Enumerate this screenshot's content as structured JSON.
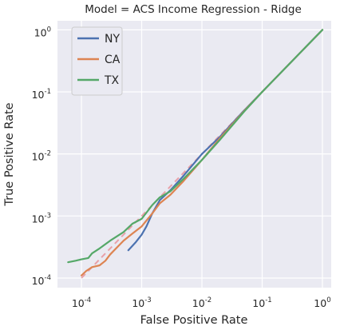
{
  "chart_data": {
    "type": "line",
    "title": "Model = ACS Income Regression - Ridge",
    "xlabel": "False Positive Rate",
    "ylabel": "True Positive Rate",
    "xscale": "log",
    "yscale": "log",
    "xlim": [
      4e-05,
      1.4
    ],
    "ylim": [
      7e-05,
      1.4
    ],
    "grid": true,
    "background": "#eaeaf2",
    "legend_position": "top-left",
    "x_ticks": [
      {
        "base": "10",
        "exp": "-4",
        "value": 0.0001
      },
      {
        "base": "10",
        "exp": "-3",
        "value": 0.001
      },
      {
        "base": "10",
        "exp": "-2",
        "value": 0.01
      },
      {
        "base": "10",
        "exp": "-1",
        "value": 0.1
      },
      {
        "base": "10",
        "exp": "0",
        "value": 1
      }
    ],
    "y_ticks": [
      {
        "base": "10",
        "exp": "-4",
        "value": 0.0001
      },
      {
        "base": "10",
        "exp": "-3",
        "value": 0.001
      },
      {
        "base": "10",
        "exp": "-2",
        "value": 0.01
      },
      {
        "base": "10",
        "exp": "-1",
        "value": 0.1
      },
      {
        "base": "10",
        "exp": "0",
        "value": 1
      }
    ],
    "reference_line": {
      "x": [
        0.0001,
        1
      ],
      "y": [
        0.0001,
        1
      ],
      "color": "#e8a0a8",
      "style": "dashed"
    },
    "series": [
      {
        "name": "NY",
        "color": "#4c72b0",
        "x": [
          0.0006,
          0.0008,
          0.001,
          0.0012,
          0.0015,
          0.002,
          0.003,
          0.005,
          0.01,
          0.02,
          0.05,
          0.1,
          0.2,
          0.5,
          1
        ],
        "y": [
          0.00028,
          0.00038,
          0.0005,
          0.00068,
          0.0011,
          0.0018,
          0.0026,
          0.0045,
          0.01,
          0.019,
          0.05,
          0.1,
          0.2,
          0.5,
          1
        ]
      },
      {
        "name": "CA",
        "color": "#dd8452",
        "x": [
          0.0001,
          0.00012,
          0.00015,
          0.0002,
          0.00025,
          0.0003,
          0.0005,
          0.0007,
          0.001,
          0.0015,
          0.002,
          0.003,
          0.005,
          0.01,
          0.02,
          0.05,
          0.1,
          0.2,
          0.5,
          1
        ],
        "y": [
          0.00011,
          0.00013,
          0.00015,
          0.00016,
          0.00019,
          0.00024,
          0.0004,
          0.00052,
          0.00068,
          0.0011,
          0.0016,
          0.0022,
          0.0037,
          0.008,
          0.018,
          0.049,
          0.1,
          0.2,
          0.5,
          1
        ]
      },
      {
        "name": "TX",
        "color": "#55a868",
        "x": [
          6e-05,
          8e-05,
          0.0001,
          0.00013,
          0.00015,
          0.0002,
          0.0003,
          0.0005,
          0.0007,
          0.001,
          0.0015,
          0.002,
          0.003,
          0.005,
          0.01,
          0.02,
          0.05,
          0.1,
          0.2,
          0.5,
          1
        ],
        "y": [
          0.00018,
          0.00019,
          0.0002,
          0.00021,
          0.00025,
          0.0003,
          0.0004,
          0.00055,
          0.00075,
          0.0009,
          0.0015,
          0.002,
          0.0025,
          0.004,
          0.008,
          0.017,
          0.048,
          0.1,
          0.2,
          0.5,
          1
        ]
      }
    ]
  }
}
